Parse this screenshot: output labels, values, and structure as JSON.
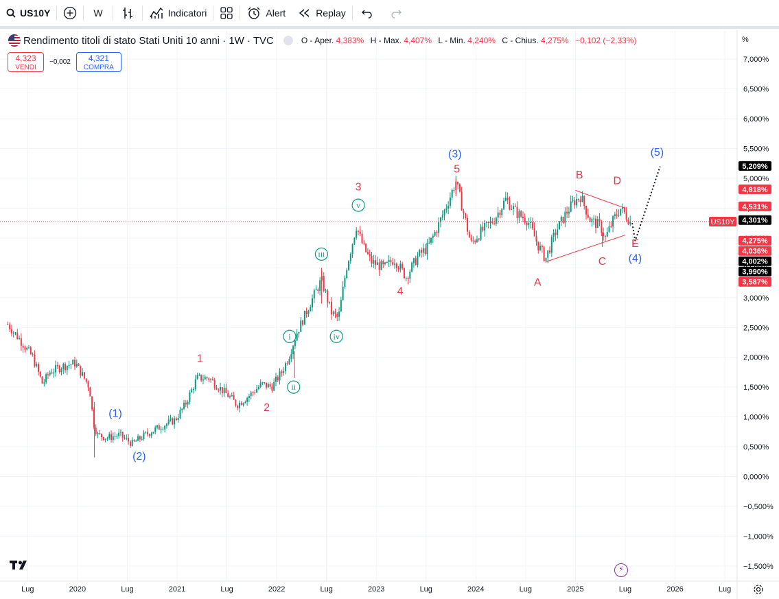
{
  "toolbar": {
    "symbol": "US10Y",
    "interval": "W",
    "indicators_label": "Indicatori",
    "alert_label": "Alert",
    "replay_label": "Replay"
  },
  "legend": {
    "title": "Rendimento titoli di stato Stati Uniti 10 anni · 1W · TVC",
    "o_label": "O - Aper.",
    "o_value": "4,383%",
    "h_label": "H - Max.",
    "h_value": "4,407%",
    "l_label": "L - Min.",
    "l_value": "4,240%",
    "c_label": "C - Chius.",
    "c_value": "4,275%",
    "change": "−0,102 (−2,33%)"
  },
  "trade": {
    "sell_price": "4,323",
    "sell_label": "VENDI",
    "spread": "−0,002",
    "buy_price": "4,321",
    "buy_label": "COMPRA"
  },
  "axis": {
    "unit": "%"
  },
  "colors": {
    "up": "#089981",
    "down": "#f23645",
    "red_wave": "#e0394b",
    "blue_wave": "#2962ff",
    "green_wave": "#089981"
  },
  "chart_data": {
    "type": "candlestick",
    "title": "Rendimento titoli di stato Stati Uniti 10 anni · 1W · TVC",
    "ylim": [
      -1.7,
      7.3
    ],
    "y_ticks": [
      "7,000%",
      "6,500%",
      "6,000%",
      "5,500%",
      "5,000%",
      "4,500%",
      "4,000%",
      "3,500%",
      "3,000%",
      "2,500%",
      "2,000%",
      "1,500%",
      "1,000%",
      "0,500%",
      "0,000%",
      "−0,500%",
      "−1,000%",
      "−1,500%"
    ],
    "y_tick_values": [
      7.0,
      6.5,
      6.0,
      5.5,
      5.0,
      4.5,
      4.0,
      3.5,
      3.0,
      2.5,
      2.0,
      1.5,
      1.0,
      0.5,
      0.0,
      -0.5,
      -1.0,
      -1.5
    ],
    "x_ticks": [
      {
        "label": "Lug",
        "t": 2019.5
      },
      {
        "label": "2020",
        "t": 2020.0
      },
      {
        "label": "Lug",
        "t": 2020.5
      },
      {
        "label": "2021",
        "t": 2021.0
      },
      {
        "label": "Lug",
        "t": 2021.5
      },
      {
        "label": "2022",
        "t": 2022.0
      },
      {
        "label": "Lug",
        "t": 2022.5
      },
      {
        "label": "2023",
        "t": 2023.0
      },
      {
        "label": "Lug",
        "t": 2023.5
      },
      {
        "label": "2024",
        "t": 2024.0
      },
      {
        "label": "Lug",
        "t": 2024.5
      },
      {
        "label": "2025",
        "t": 2025.0
      },
      {
        "label": "Lug",
        "t": 2025.5
      },
      {
        "label": "2026",
        "t": 2026.0
      },
      {
        "label": "Lug",
        "t": 2026.5
      }
    ],
    "price_path": [
      [
        2019.3,
        2.55
      ],
      [
        2019.42,
        2.3
      ],
      [
        2019.55,
        2.0
      ],
      [
        2019.65,
        1.55
      ],
      [
        2019.72,
        1.75
      ],
      [
        2019.85,
        1.85
      ],
      [
        2019.98,
        1.9
      ],
      [
        2020.05,
        1.7
      ],
      [
        2020.12,
        1.5
      ],
      [
        2020.16,
        0.9
      ],
      [
        2020.2,
        0.7
      ],
      [
        2020.3,
        0.65
      ],
      [
        2020.42,
        0.7
      ],
      [
        2020.55,
        0.55
      ],
      [
        2020.68,
        0.7
      ],
      [
        2020.85,
        0.85
      ],
      [
        2020.98,
        0.95
      ],
      [
        2021.08,
        1.2
      ],
      [
        2021.2,
        1.65
      ],
      [
        2021.32,
        1.65
      ],
      [
        2021.45,
        1.45
      ],
      [
        2021.55,
        1.3
      ],
      [
        2021.6,
        1.2
      ],
      [
        2021.72,
        1.35
      ],
      [
        2021.85,
        1.55
      ],
      [
        2021.95,
        1.5
      ],
      [
        2022.05,
        1.75
      ],
      [
        2022.12,
        2.0
      ],
      [
        2022.2,
        2.4
      ],
      [
        2022.35,
        2.95
      ],
      [
        2022.45,
        3.3
      ],
      [
        2022.55,
        2.75
      ],
      [
        2022.62,
        2.65
      ],
      [
        2022.7,
        3.5
      ],
      [
        2022.8,
        4.2
      ],
      [
        2022.87,
        3.85
      ],
      [
        2022.95,
        3.6
      ],
      [
        2023.08,
        3.5
      ],
      [
        2023.18,
        3.65
      ],
      [
        2023.3,
        3.35
      ],
      [
        2023.42,
        3.7
      ],
      [
        2023.52,
        3.85
      ],
      [
        2023.62,
        4.2
      ],
      [
        2023.72,
        4.6
      ],
      [
        2023.8,
        4.95
      ],
      [
        2023.88,
        4.4
      ],
      [
        2023.95,
        3.9
      ],
      [
        2024.05,
        4.1
      ],
      [
        2024.18,
        4.3
      ],
      [
        2024.3,
        4.65
      ],
      [
        2024.42,
        4.4
      ],
      [
        2024.52,
        4.3
      ],
      [
        2024.62,
        3.9
      ],
      [
        2024.7,
        3.65
      ],
      [
        2024.8,
        4.1
      ],
      [
        2024.9,
        4.4
      ],
      [
        2024.98,
        4.6
      ],
      [
        2025.05,
        4.7
      ],
      [
        2025.15,
        4.3
      ],
      [
        2025.25,
        4.2
      ],
      [
        2025.3,
        4.0
      ],
      [
        2025.38,
        4.3
      ],
      [
        2025.45,
        4.5
      ],
      [
        2025.5,
        4.4
      ],
      [
        2025.55,
        4.275
      ]
    ],
    "series": [
      {
        "name": "price_tags",
        "values": [
          {
            "label": "5,209%",
            "value": 5.209,
            "bg": "#000000"
          },
          {
            "label": "4,818%",
            "value": 4.818,
            "bg": "#f23645"
          },
          {
            "label": "4,531%",
            "value": 4.531,
            "bg": "#f23645"
          },
          {
            "label": "4,301%",
            "value": 4.301,
            "bg": "#000000"
          },
          {
            "label": "US10Y",
            "value": 4.275,
            "bg": "#f23645"
          },
          {
            "label": "4,275%",
            "value": 4.275,
            "bg": "#f23645"
          },
          {
            "label": "4,036%",
            "value": 4.036,
            "bg": "#f23645"
          },
          {
            "label": "4,002%",
            "value": 4.002,
            "bg": "#000000"
          },
          {
            "label": "3,990%",
            "value": 3.99,
            "bg": "#000000"
          },
          {
            "label": "3,587%",
            "value": 3.587,
            "bg": "#f23645"
          }
        ]
      }
    ],
    "annotations": [
      {
        "text": "(1)",
        "t": 2020.38,
        "y": 1.0,
        "color": "blue",
        "style": "plain"
      },
      {
        "text": "(2)",
        "t": 2020.62,
        "y": 0.28,
        "color": "blue",
        "style": "plain"
      },
      {
        "text": "(3)",
        "t": 2023.79,
        "y": 5.35,
        "color": "blue",
        "style": "plain"
      },
      {
        "text": "(4)",
        "t": 2025.6,
        "y": 3.6,
        "color": "blue",
        "style": "plain"
      },
      {
        "text": "(5)",
        "t": 2025.82,
        "y": 5.38,
        "color": "blue",
        "style": "plain"
      },
      {
        "text": "1",
        "t": 2021.23,
        "y": 1.92,
        "color": "red",
        "style": "plain"
      },
      {
        "text": "2",
        "t": 2021.9,
        "y": 1.1,
        "color": "red",
        "style": "plain"
      },
      {
        "text": "3",
        "t": 2022.82,
        "y": 4.8,
        "color": "red",
        "style": "plain"
      },
      {
        "text": "4",
        "t": 2023.24,
        "y": 3.05,
        "color": "red",
        "style": "plain"
      },
      {
        "text": "5",
        "t": 2023.81,
        "y": 5.1,
        "color": "red",
        "style": "plain"
      },
      {
        "text": "A",
        "t": 2024.62,
        "y": 3.2,
        "color": "red",
        "style": "plain"
      },
      {
        "text": "B",
        "t": 2025.04,
        "y": 5.0,
        "color": "red",
        "style": "plain"
      },
      {
        "text": "C",
        "t": 2025.27,
        "y": 3.55,
        "color": "red",
        "style": "plain"
      },
      {
        "text": "D",
        "t": 2025.42,
        "y": 4.9,
        "color": "red",
        "style": "plain"
      },
      {
        "text": "E",
        "t": 2025.6,
        "y": 3.85,
        "color": "red",
        "style": "plain"
      },
      {
        "text": "i",
        "t": 2022.13,
        "y": 2.35,
        "color": "green",
        "style": "circle"
      },
      {
        "text": "ii",
        "t": 2022.17,
        "y": 1.5,
        "color": "green",
        "style": "circle"
      },
      {
        "text": "iii",
        "t": 2022.45,
        "y": 3.73,
        "color": "green",
        "style": "circle"
      },
      {
        "text": "iv",
        "t": 2022.6,
        "y": 2.35,
        "color": "green",
        "style": "circle"
      },
      {
        "text": "v",
        "t": 2022.82,
        "y": 4.55,
        "color": "green",
        "style": "circle"
      }
    ],
    "trendlines": [
      {
        "t1": 2025.0,
        "y1": 4.8,
        "t2": 2025.5,
        "y2": 4.5
      },
      {
        "t1": 2024.7,
        "y1": 3.6,
        "t2": 2025.5,
        "y2": 4.05
      }
    ],
    "projection": [
      [
        2025.57,
        4.25
      ],
      [
        2025.6,
        3.95
      ],
      [
        2025.85,
        5.2
      ]
    ],
    "last_price": 4.275
  }
}
